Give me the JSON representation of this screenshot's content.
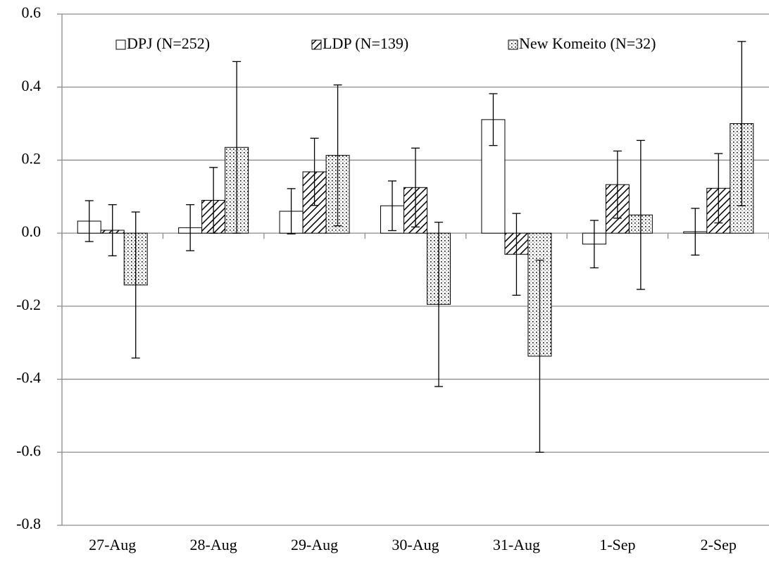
{
  "chart_data": {
    "type": "bar",
    "categories": [
      "27-Aug",
      "28-Aug",
      "29-Aug",
      "30-Aug",
      "31-Aug",
      "1-Sep",
      "2-Sep"
    ],
    "series": [
      {
        "name": "DPJ (N=252)",
        "color": "#ffffff",
        "pattern": "solid",
        "values": [
          0.033,
          0.015,
          0.06,
          0.075,
          0.311,
          -0.03,
          0.004
        ],
        "errors": [
          0.056,
          0.063,
          0.062,
          0.068,
          0.071,
          0.065,
          0.064
        ]
      },
      {
        "name": "LDP (N=139)",
        "color": "#ffffff",
        "pattern": "hatch",
        "values": [
          0.008,
          0.09,
          0.168,
          0.125,
          -0.058,
          0.133,
          0.123
        ],
        "errors": [
          0.07,
          0.09,
          0.092,
          0.108,
          0.112,
          0.092,
          0.095
        ]
      },
      {
        "name": "New Komeito (N=32)",
        "color": "#ffffff",
        "pattern": "dots",
        "values": [
          -0.142,
          0.235,
          0.213,
          -0.195,
          -0.337,
          0.05,
          0.3
        ],
        "errors": [
          0.2,
          0.235,
          0.193,
          0.225,
          0.263,
          0.204,
          0.225
        ]
      }
    ],
    "ylim": [
      -0.8,
      0.6
    ],
    "yticks": [
      -0.8,
      -0.6,
      -0.4,
      -0.2,
      {
        "value": 0,
        "label": "0.0"
      },
      0.2,
      0.4,
      0.6
    ],
    "grid": true,
    "legend": "top"
  }
}
